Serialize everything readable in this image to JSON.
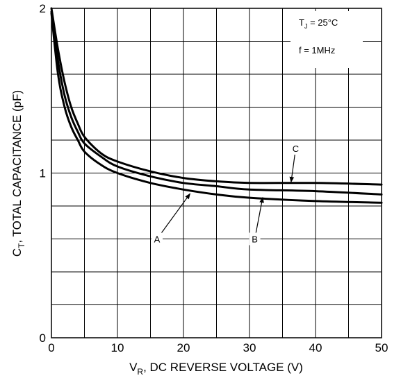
{
  "chart_data": {
    "type": "line",
    "title": "",
    "xlabel": {
      "main": "V",
      "sub": "R",
      "rest": ", DC REVERSE VOLTAGE (V)"
    },
    "ylabel": {
      "main": "C",
      "sub": "T",
      "rest": ", TOTAL CAPACITANCE (pF)"
    },
    "xlim": [
      0,
      50
    ],
    "ylim": [
      0,
      2
    ],
    "x_ticks": [
      0,
      10,
      20,
      30,
      40,
      50
    ],
    "x_tick_labels": [
      "0",
      "10",
      "20",
      "30",
      "40",
      "50"
    ],
    "y_ticks": [
      0,
      1,
      2
    ],
    "y_tick_labels": [
      "0",
      "1",
      "2"
    ],
    "grid": true,
    "grid_x_step": 5,
    "grid_y_lines": [
      0.2,
      0.4,
      0.6,
      0.8,
      1.0,
      1.2,
      1.4,
      1.6,
      1.8
    ],
    "annotations": {
      "temp_main": "T",
      "temp_sub": "J",
      "temp_rest": " = 25°C",
      "freq": "f = 1MHz"
    },
    "series": [
      {
        "name": "A",
        "x": [
          0,
          1,
          2,
          3,
          4,
          5,
          7.5,
          10,
          15,
          20,
          25,
          30,
          40,
          50
        ],
        "y": [
          1.97,
          1.6,
          1.4,
          1.28,
          1.2,
          1.13,
          1.05,
          1.0,
          0.94,
          0.9,
          0.87,
          0.85,
          0.83,
          0.82
        ]
      },
      {
        "name": "B",
        "x": [
          0,
          1,
          2,
          3,
          4,
          5,
          7.5,
          10,
          15,
          20,
          25,
          30,
          40,
          50
        ],
        "y": [
          1.98,
          1.68,
          1.47,
          1.34,
          1.25,
          1.18,
          1.1,
          1.04,
          0.98,
          0.94,
          0.92,
          0.9,
          0.89,
          0.87
        ]
      },
      {
        "name": "C",
        "x": [
          0,
          1,
          2,
          3,
          4,
          5,
          7.5,
          10,
          15,
          20,
          25,
          30,
          40,
          50
        ],
        "y": [
          2.0,
          1.75,
          1.55,
          1.4,
          1.3,
          1.22,
          1.12,
          1.07,
          1.01,
          0.97,
          0.95,
          0.94,
          0.94,
          0.93
        ]
      }
    ],
    "callouts": [
      {
        "label": "A",
        "series": "A",
        "label_at": [
          16,
          0.6
        ],
        "arrow_to": [
          21,
          0.875
        ]
      },
      {
        "label": "B",
        "series": "B",
        "label_at": [
          30.8,
          0.6
        ],
        "arrow_to": [
          32,
          0.852
        ]
      },
      {
        "label": "C",
        "series": "C",
        "label_at": [
          37,
          1.15
        ],
        "arrow_to": [
          36.3,
          0.945
        ]
      }
    ]
  }
}
